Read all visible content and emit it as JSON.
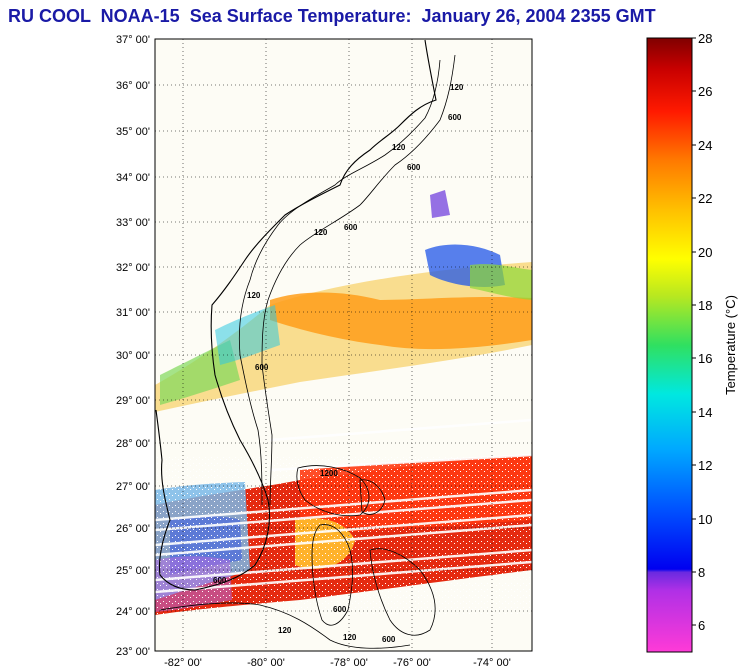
{
  "title": "RU COOL  NOAA-15  Sea Surface Temperature:  January 26, 2004 2355 GMT",
  "map": {
    "lat_labels": [
      "37° 00'",
      "36° 00'",
      "35° 00'",
      "34° 00'",
      "33° 00'",
      "32° 00'",
      "31° 00'",
      "30° 00'",
      "29° 00'",
      "28° 00'",
      "27° 00'",
      "26° 00'",
      "25° 00'",
      "24° 00'",
      "23° 00'"
    ],
    "lon_labels": [
      "-82° 00'",
      "-80° 00'",
      "-78° 00'",
      "-76° 00'",
      "-74° 00'"
    ],
    "contour_labels": [
      "120",
      "600",
      "120",
      "600",
      "120",
      "600",
      "120",
      "600",
      "600",
      "1200",
      "600",
      "120",
      "600",
      "120"
    ]
  },
  "colorbar": {
    "label": "Temperature (°C)",
    "ticks": [
      "28",
      "26",
      "24",
      "22",
      "20",
      "18",
      "16",
      "14",
      "12",
      "10",
      "8",
      "6"
    ],
    "range": [
      5,
      28
    ]
  }
}
